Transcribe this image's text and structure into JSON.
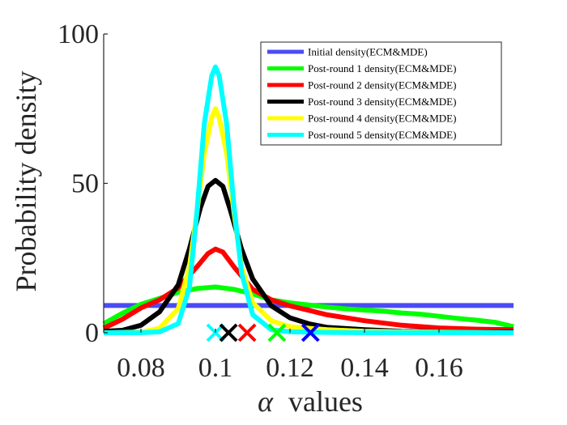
{
  "chart_data": {
    "type": "line",
    "title": "",
    "xlabel_symbol": "α",
    "xlabel_text": "values",
    "ylabel": "Probability density",
    "xlim": [
      0.07,
      0.18
    ],
    "ylim": [
      0,
      100
    ],
    "xticks": [
      0.08,
      0.1,
      0.12,
      0.14,
      0.16
    ],
    "xtick_labels": [
      "0.08",
      "0.1",
      "0.12",
      "0.14",
      "0.16"
    ],
    "yticks": [
      0,
      50,
      100
    ],
    "ytick_labels": [
      "0",
      "50",
      "100"
    ],
    "grid": false,
    "legend_position": "top-right",
    "series": [
      {
        "name": "Initial density(ECM&MDE)",
        "color": "#4b4bf5",
        "x": [
          0.07,
          0.18
        ],
        "y": [
          9.1,
          9.1
        ]
      },
      {
        "name": "Post-round 1 density(ECM&MDE)",
        "color": "#00ff00",
        "x": [
          0.07,
          0.075,
          0.08,
          0.085,
          0.09,
          0.095,
          0.1,
          0.105,
          0.11,
          0.115,
          0.12,
          0.125,
          0.13,
          0.135,
          0.14,
          0.145,
          0.15,
          0.155,
          0.16,
          0.165,
          0.17,
          0.175,
          0.18
        ],
        "y": [
          3,
          6.5,
          9.5,
          11.5,
          13.5,
          14.8,
          15.3,
          14.5,
          13,
          11,
          10,
          9.3,
          8.6,
          8,
          7.6,
          7.2,
          6.6,
          6.2,
          5.5,
          4.8,
          4.2,
          3.5,
          2
        ]
      },
      {
        "name": "Post-round 2 density(ECM&MDE)",
        "color": "#ff0000",
        "x": [
          0.07,
          0.075,
          0.08,
          0.085,
          0.09,
          0.095,
          0.098,
          0.1,
          0.102,
          0.105,
          0.11,
          0.115,
          0.12,
          0.13,
          0.14,
          0.15,
          0.16,
          0.17,
          0.18
        ],
        "y": [
          1.5,
          4.5,
          8.3,
          11,
          15,
          22,
          26.5,
          28,
          27,
          22,
          14.5,
          11,
          9,
          6,
          4,
          2.5,
          1.6,
          1.2,
          1
        ]
      },
      {
        "name": "Post-round 3 density(ECM&MDE)",
        "color": "#000000",
        "x": [
          0.07,
          0.075,
          0.08,
          0.085,
          0.09,
          0.093,
          0.096,
          0.098,
          0.1,
          0.102,
          0.104,
          0.107,
          0.11,
          0.115,
          0.12,
          0.125,
          0.13,
          0.14,
          0.15,
          0.16,
          0.17,
          0.18
        ],
        "y": [
          0.5,
          0.8,
          2.5,
          7,
          16,
          28,
          42,
          49,
          51,
          49,
          41,
          28,
          18,
          9,
          5,
          3,
          1.8,
          1,
          0.5,
          0.3,
          0.2,
          0.2
        ]
      },
      {
        "name": "Post-round 4 density(ECM&MDE)",
        "color": "#ffff00",
        "x": [
          0.07,
          0.08,
          0.085,
          0.09,
          0.093,
          0.095,
          0.097,
          0.099,
          0.1,
          0.101,
          0.103,
          0.105,
          0.107,
          0.11,
          0.115,
          0.12,
          0.13,
          0.14,
          0.15,
          0.16,
          0.17,
          0.18
        ],
        "y": [
          0,
          0.2,
          1.5,
          8,
          22,
          40,
          60,
          72,
          75,
          72,
          60,
          40,
          22,
          10,
          4,
          2,
          1,
          0.5,
          0.3,
          0.2,
          0.1,
          0
        ]
      },
      {
        "name": "Post-round 5 density(ECM&MDE)",
        "color": "#00ffff",
        "x": [
          0.07,
          0.08,
          0.085,
          0.09,
          0.093,
          0.095,
          0.097,
          0.099,
          0.1,
          0.101,
          0.103,
          0.105,
          0.107,
          0.11,
          0.115,
          0.12,
          0.13,
          0.14,
          0.15,
          0.16,
          0.17,
          0.18
        ],
        "y": [
          0,
          0,
          0.3,
          3,
          15,
          40,
          70,
          86,
          89,
          86,
          70,
          42,
          20,
          6,
          1,
          0.3,
          0.1,
          0,
          0,
          0,
          0,
          0
        ]
      }
    ],
    "markers": [
      {
        "shape": "x",
        "color": "#00ffff",
        "x": 0.1,
        "y": 0
      },
      {
        "shape": "x",
        "color": "#000000",
        "x": 0.1035,
        "y": 0
      },
      {
        "shape": "x",
        "color": "#ff0000",
        "x": 0.1085,
        "y": 0
      },
      {
        "shape": "x",
        "color": "#00ff00",
        "x": 0.1165,
        "y": 0
      },
      {
        "shape": "x",
        "color": "#0000ff",
        "x": 0.1255,
        "y": 0
      }
    ]
  }
}
